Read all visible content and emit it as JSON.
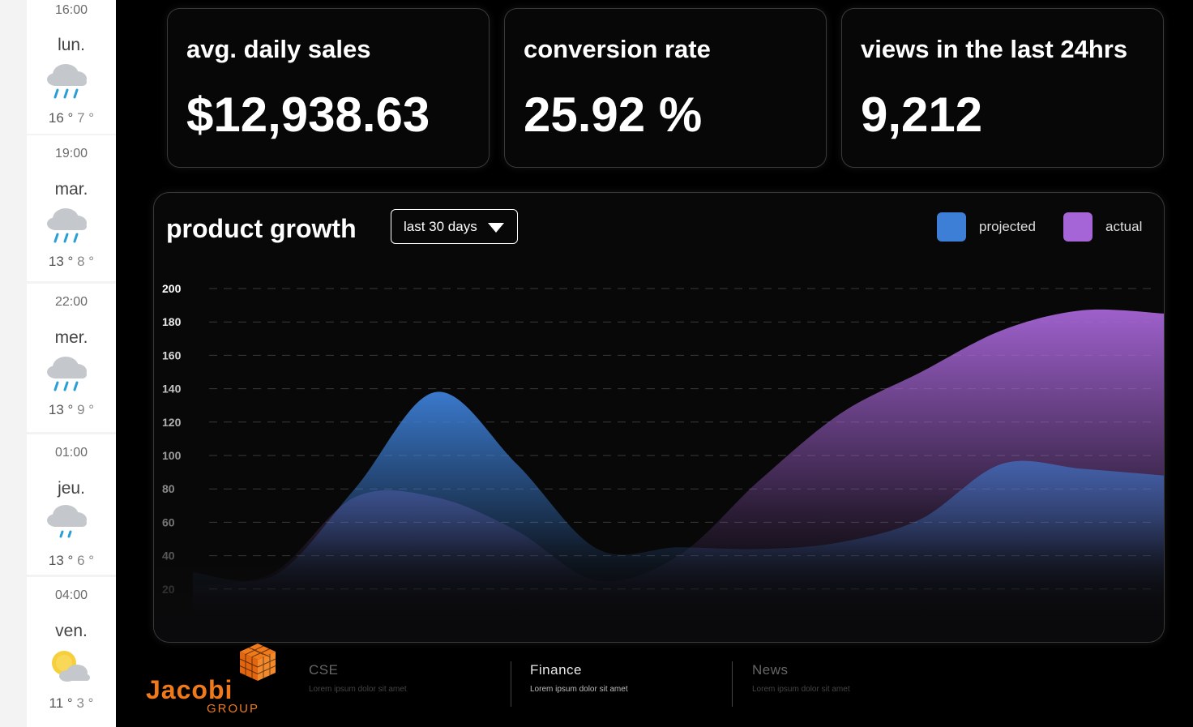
{
  "weather": {
    "days": [
      {
        "time": "16:00",
        "day": "lun.",
        "high": "16 °",
        "low": "7 °",
        "icon": "rain-cloud-icon"
      },
      {
        "time": "19:00",
        "day": "mar.",
        "high": "13 °",
        "low": "8 °",
        "icon": "rain-cloud-icon"
      },
      {
        "time": "22:00",
        "day": "mer.",
        "high": "13 °",
        "low": "9 °",
        "icon": "rain-cloud-icon"
      },
      {
        "time": "01:00",
        "day": "jeu.",
        "high": "13 °",
        "low": "6 °",
        "icon": "light-rain-cloud-icon"
      },
      {
        "time": "04:00",
        "day": "ven.",
        "high": "11 °",
        "low": "3 °",
        "icon": "sun-cloud-icon"
      }
    ]
  },
  "kpis": [
    {
      "label": "avg. daily sales",
      "value": "$12,938.63"
    },
    {
      "label": "conversion rate",
      "value": "25.92 %"
    },
    {
      "label": "views in the last 24hrs",
      "value": "9,212"
    }
  ],
  "chart_panel": {
    "title": "product growth",
    "range_selected": "last 30 days",
    "legend": [
      {
        "label": "projected",
        "color": "#3d7fd6"
      },
      {
        "label": "actual",
        "color": "#a665d6"
      }
    ]
  },
  "chart_data": {
    "type": "area",
    "title": "product growth",
    "xlabel": "",
    "ylabel": "",
    "ylim": [
      0,
      200
    ],
    "yticks": [
      200,
      180,
      160,
      140,
      120,
      100,
      80,
      60,
      40,
      20
    ],
    "grid": true,
    "legend_position": "top-right",
    "x": [
      0,
      1,
      2,
      3,
      4,
      5,
      6,
      7,
      8,
      9,
      10,
      11,
      12
    ],
    "series": [
      {
        "name": "projected",
        "values": [
          30,
          28,
          80,
          138,
          95,
          44,
          45,
          44,
          48,
          62,
          95,
          92,
          88
        ],
        "color": "#3d7fd6"
      },
      {
        "name": "actual",
        "values": [
          22,
          30,
          75,
          75,
          55,
          25,
          40,
          85,
          125,
          150,
          175,
          187,
          185
        ],
        "color": "#a665d6"
      }
    ]
  },
  "footer": {
    "logo_text": "Jacobi",
    "logo_sub": "GROUP",
    "columns": [
      {
        "title": "CSE",
        "sub": "Lorem ipsum dolor sit amet",
        "active": false
      },
      {
        "title": "Finance",
        "sub": "Lorem ipsum dolor sit amet",
        "active": true
      },
      {
        "title": "News",
        "sub": "Lorem ipsum dolor sit amet",
        "active": false
      }
    ]
  }
}
